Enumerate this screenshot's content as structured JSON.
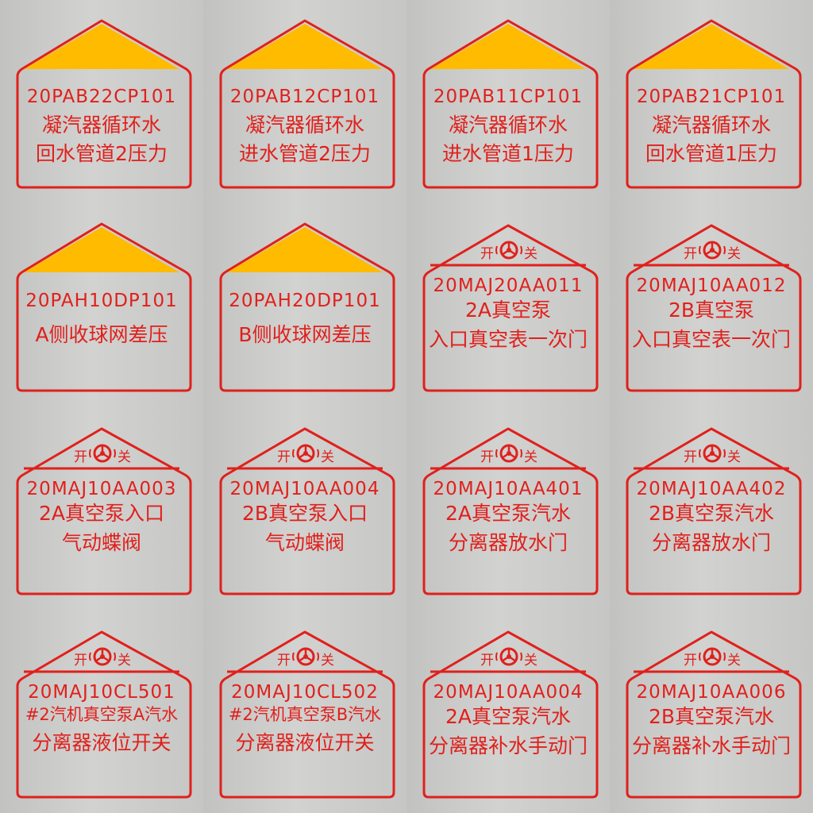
{
  "colors": {
    "border": "#e0201c",
    "triangle": "#ffbb00",
    "background": "#c9c9c7"
  },
  "valve_icon": {
    "name": "valve-handwheel-icon",
    "open_label": "开",
    "close_label": "关"
  },
  "labels": [
    {
      "type": "pressure",
      "code": "20PAB22CP101",
      "lines": [
        "凝汽器循环水",
        "回水管道2压力"
      ]
    },
    {
      "type": "pressure",
      "code": "20PAB12CP101",
      "lines": [
        "凝汽器循环水",
        "进水管道2压力"
      ]
    },
    {
      "type": "pressure",
      "code": "20PAB11CP101",
      "lines": [
        "凝汽器循环水",
        "进水管道1压力"
      ]
    },
    {
      "type": "pressure",
      "code": "20PAB21CP101",
      "lines": [
        "凝汽器循环水",
        "回水管道1压力"
      ]
    },
    {
      "type": "pressure",
      "code": "20PAH10DP101",
      "lines": [
        "A侧收球网差压"
      ]
    },
    {
      "type": "pressure",
      "code": "20PAH20DP101",
      "lines": [
        "B侧收球网差压"
      ]
    },
    {
      "type": "valve",
      "code": "20MAJ20AA011",
      "lines": [
        "2A真空泵",
        "入口真空表一次门"
      ]
    },
    {
      "type": "valve",
      "code": "20MAJ10AA012",
      "lines": [
        "2B真空泵",
        "入口真空表一次门"
      ]
    },
    {
      "type": "valve",
      "code": "20MAJ10AA003",
      "lines": [
        "2A真空泵入口",
        "气动蝶阀"
      ]
    },
    {
      "type": "valve",
      "code": "20MAJ10AA004",
      "lines": [
        "2B真空泵入口",
        "气动蝶阀"
      ]
    },
    {
      "type": "valve",
      "code": "20MAJ10AA401",
      "lines": [
        "2A真空泵汽水",
        "分离器放水门"
      ]
    },
    {
      "type": "valve",
      "code": "20MAJ10AA402",
      "lines": [
        "2B真空泵汽水",
        "分离器放水门"
      ]
    },
    {
      "type": "valve",
      "code": "20MAJ10CL501",
      "lines": [
        "#2汽机真空泵A汽水",
        "分离器液位开关"
      ]
    },
    {
      "type": "valve",
      "code": "20MAJ10CL502",
      "lines": [
        "#2汽机真空泵B汽水",
        "分离器液位开关"
      ]
    },
    {
      "type": "valve",
      "code": "20MAJ10AA004",
      "lines": [
        "2A真空泵汽水",
        "分离器补水手动门"
      ]
    },
    {
      "type": "valve",
      "code": "20MAJ10AA006",
      "lines": [
        "2B真空泵汽水",
        "分离器补水手动门"
      ]
    }
  ]
}
